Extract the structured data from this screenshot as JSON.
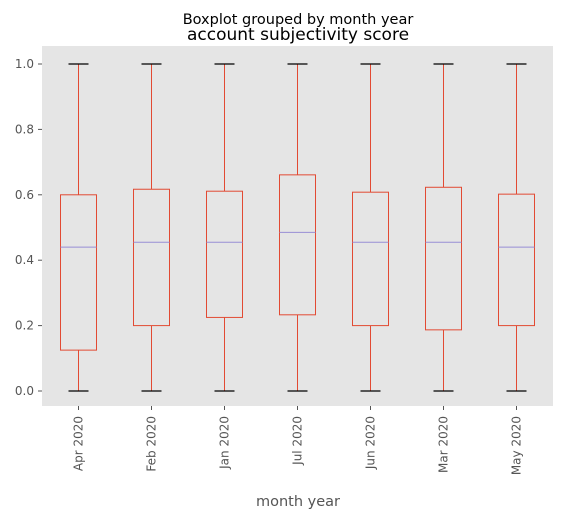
{
  "chart_data": {
    "type": "boxplot",
    "suptitle": "Boxplot grouped by month year",
    "title": "account subjectivity score",
    "xlabel": "month year",
    "ylabel": "",
    "ylim": [
      -0.05,
      1.05
    ],
    "yticks": [
      "0.0",
      "0.2",
      "0.4",
      "0.6",
      "0.8",
      "1.0"
    ],
    "grid": false,
    "categories": [
      "Apr 2020",
      "Feb 2020",
      "Jan 2020",
      "Jul 2020",
      "Jun 2020",
      "Mar 2020",
      "May 2020"
    ],
    "boxes": [
      {
        "min": 0.0,
        "q1": 0.125,
        "median": 0.44,
        "q3": 0.6,
        "max": 1.0
      },
      {
        "min": 0.0,
        "q1": 0.2,
        "median": 0.455,
        "q3": 0.617,
        "max": 1.0
      },
      {
        "min": 0.0,
        "q1": 0.225,
        "median": 0.455,
        "q3": 0.611,
        "max": 1.0
      },
      {
        "min": 0.0,
        "q1": 0.233,
        "median": 0.485,
        "q3": 0.661,
        "max": 1.0
      },
      {
        "min": 0.0,
        "q1": 0.2,
        "median": 0.455,
        "q3": 0.608,
        "max": 1.0
      },
      {
        "min": 0.0,
        "q1": 0.187,
        "median": 0.455,
        "q3": 0.623,
        "max": 1.0
      },
      {
        "min": 0.0,
        "q1": 0.2,
        "median": 0.44,
        "q3": 0.602,
        "max": 1.0
      }
    ],
    "colors": {
      "background": "#e5e5e5",
      "box": "#e24a33",
      "median": "#8eba42",
      "median_line": "#988ed5",
      "whisker_cap": "#000000"
    }
  }
}
